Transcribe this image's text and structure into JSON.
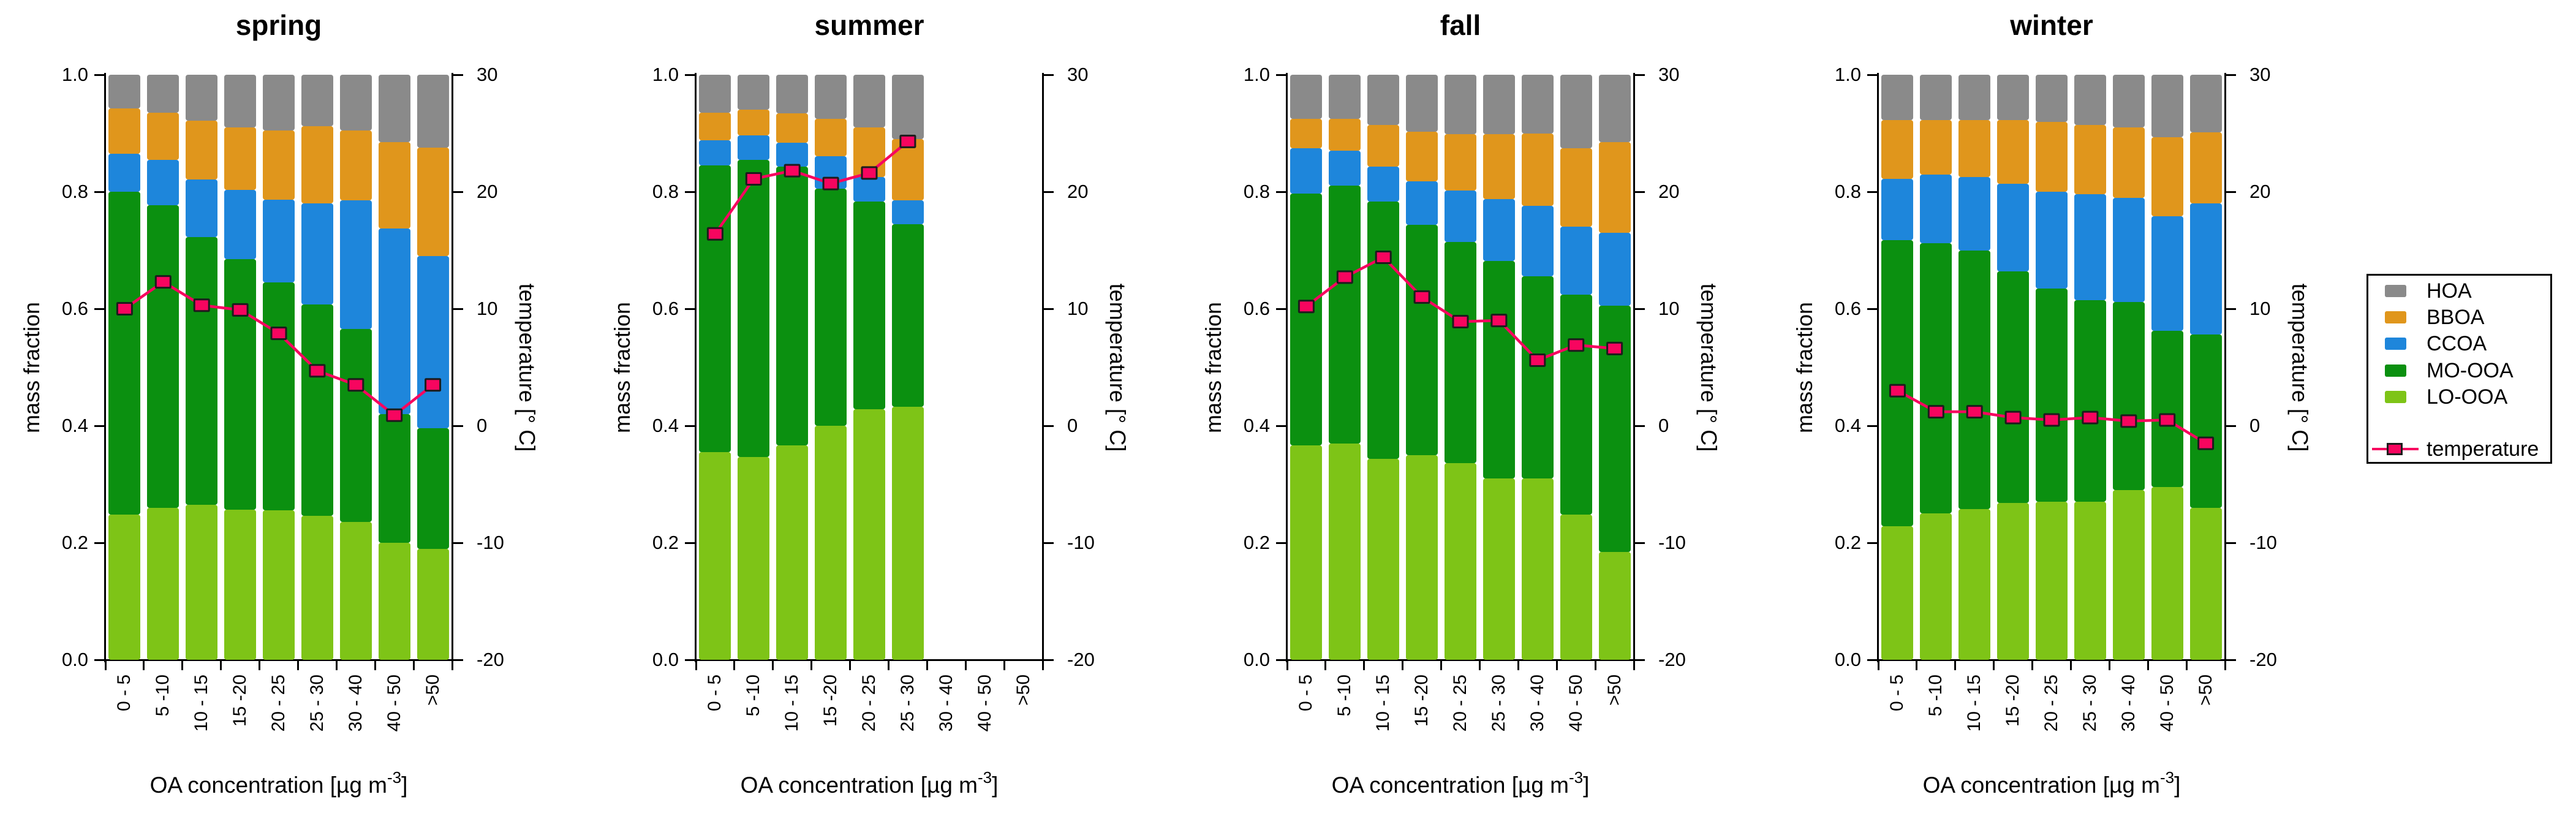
{
  "colors": {
    "HOA": "#8A8A8A",
    "BBOA": "#E0961C",
    "CCOA": "#1E86DB",
    "MO-OOA": "#0B9010",
    "LO-OOA": "#7EC417",
    "temperature": "#F7055F",
    "temperature_border": "#1C1C1C",
    "axis": "#000000"
  },
  "legend": {
    "items": [
      {
        "label": "HOA",
        "color_key": "HOA"
      },
      {
        "label": "BBOA",
        "color_key": "BBOA"
      },
      {
        "label": "CCOA",
        "color_key": "CCOA"
      },
      {
        "label": "MO-OOA",
        "color_key": "MO-OOA"
      },
      {
        "label": "LO-OOA",
        "color_key": "LO-OOA"
      }
    ],
    "temperature_label": "temperature"
  },
  "axes": {
    "y_left": {
      "label": "mass fraction",
      "ticks": [
        "1.0",
        "0.8",
        "0.6",
        "0.4",
        "0.2",
        "0.0"
      ]
    },
    "y_right": {
      "label": "temperature [° C]",
      "ticks": [
        "30",
        "20",
        "10",
        "0",
        "-10",
        "-20"
      ]
    },
    "x": {
      "label_pre": "OA concentration [µg m",
      "label_sup": "-3",
      "label_post": "]",
      "categories": [
        "0 - 5",
        "5 -10",
        "10 - 15",
        "15 -20",
        "20 - 25",
        "25 - 30",
        "30 - 40",
        "40 - 50",
        ">50"
      ]
    }
  },
  "chart_data": [
    {
      "type": "bar",
      "stacked": true,
      "title": "spring",
      "xlabel": "OA concentration [µg m-3]",
      "ylabel": "mass fraction",
      "y2label": "temperature [° C]",
      "ylim": [
        0,
        1
      ],
      "y2lim": [
        -20,
        30
      ],
      "grid": false,
      "legend_position": "right-outside",
      "categories": [
        "0 - 5",
        "5 -10",
        "10 - 15",
        "15 -20",
        "20 - 25",
        "25 - 30",
        "30 - 40",
        "40 - 50",
        ">50"
      ],
      "series": [
        {
          "name": "LO-OOA",
          "values": [
            0.248,
            0.26,
            0.265,
            0.257,
            0.255,
            0.246,
            0.236,
            0.2,
            0.19
          ]
        },
        {
          "name": "MO-OOA",
          "values": [
            0.552,
            0.517,
            0.458,
            0.428,
            0.39,
            0.361,
            0.329,
            0.22,
            0.206
          ]
        },
        {
          "name": "CCOA",
          "values": [
            0.065,
            0.077,
            0.098,
            0.118,
            0.141,
            0.173,
            0.22,
            0.317,
            0.294
          ]
        },
        {
          "name": "BBOA",
          "values": [
            0.077,
            0.081,
            0.1,
            0.107,
            0.119,
            0.132,
            0.12,
            0.148,
            0.185
          ]
        },
        {
          "name": "HOA",
          "values": [
            0.058,
            0.065,
            0.079,
            0.09,
            0.095,
            0.088,
            0.095,
            0.115,
            0.125
          ]
        }
      ],
      "temperature": {
        "name": "temperature",
        "axis": "right",
        "values": [
          10.0,
          12.3,
          10.3,
          9.9,
          7.9,
          4.7,
          3.5,
          0.9,
          3.5
        ]
      }
    },
    {
      "type": "bar",
      "stacked": true,
      "title": "summer",
      "xlabel": "OA concentration [µg m-3]",
      "ylabel": "mass fraction",
      "y2label": "temperature [° C]",
      "ylim": [
        0,
        1
      ],
      "y2lim": [
        -20,
        30
      ],
      "grid": false,
      "legend_position": "right-outside",
      "categories": [
        "0 - 5",
        "5 -10",
        "10 - 15",
        "15 -20",
        "20 - 25",
        "25 - 30",
        "30 - 40",
        "40 - 50",
        ">50"
      ],
      "series": [
        {
          "name": "LO-OOA",
          "values": [
            0.355,
            0.347,
            0.367,
            0.4,
            0.428,
            0.432,
            null,
            null,
            null
          ]
        },
        {
          "name": "MO-OOA",
          "values": [
            0.49,
            0.507,
            0.476,
            0.405,
            0.355,
            0.313,
            null,
            null,
            null
          ]
        },
        {
          "name": "CCOA",
          "values": [
            0.043,
            0.042,
            0.041,
            0.056,
            0.042,
            0.04,
            null,
            null,
            null
          ]
        },
        {
          "name": "BBOA",
          "values": [
            0.047,
            0.044,
            0.05,
            0.064,
            0.085,
            0.105,
            null,
            null,
            null
          ]
        },
        {
          "name": "HOA",
          "values": [
            0.065,
            0.06,
            0.066,
            0.075,
            0.09,
            0.11,
            null,
            null,
            null
          ]
        }
      ],
      "temperature": {
        "name": "temperature",
        "axis": "right",
        "values": [
          16.4,
          21.1,
          21.8,
          20.7,
          21.6,
          24.3,
          null,
          null,
          null
        ]
      }
    },
    {
      "type": "bar",
      "stacked": true,
      "title": "fall",
      "xlabel": "OA concentration [µg m-3]",
      "ylabel": "mass fraction",
      "y2label": "temperature [° C]",
      "ylim": [
        0,
        1
      ],
      "y2lim": [
        -20,
        30
      ],
      "grid": false,
      "legend_position": "right-outside",
      "categories": [
        "0 - 5",
        "5 -10",
        "10 - 15",
        "15 -20",
        "20 - 25",
        "25 - 30",
        "30 - 40",
        "40 - 50",
        ">50"
      ],
      "series": [
        {
          "name": "LO-OOA",
          "values": [
            0.367,
            0.37,
            0.343,
            0.35,
            0.336,
            0.31,
            0.31,
            0.248,
            0.184
          ]
        },
        {
          "name": "MO-OOA",
          "values": [
            0.43,
            0.44,
            0.44,
            0.393,
            0.378,
            0.372,
            0.345,
            0.376,
            0.421
          ]
        },
        {
          "name": "CCOA",
          "values": [
            0.077,
            0.06,
            0.06,
            0.075,
            0.088,
            0.105,
            0.121,
            0.116,
            0.125
          ]
        },
        {
          "name": "BBOA",
          "values": [
            0.051,
            0.055,
            0.071,
            0.085,
            0.096,
            0.111,
            0.124,
            0.134,
            0.155
          ]
        },
        {
          "name": "HOA",
          "values": [
            0.075,
            0.075,
            0.086,
            0.097,
            0.102,
            0.102,
            0.1,
            0.126,
            0.115
          ]
        }
      ],
      "temperature": {
        "name": "temperature",
        "axis": "right",
        "values": [
          10.2,
          12.7,
          14.4,
          11.0,
          8.9,
          9.0,
          5.6,
          6.9,
          6.6
        ]
      }
    },
    {
      "type": "bar",
      "stacked": true,
      "title": "winter",
      "xlabel": "OA concentration [µg m-3]",
      "ylabel": "mass fraction",
      "y2label": "temperature [° C]",
      "ylim": [
        0,
        1
      ],
      "y2lim": [
        -20,
        30
      ],
      "grid": false,
      "legend_position": "right-outside",
      "categories": [
        "0 - 5",
        "5 -10",
        "10 - 15",
        "15 -20",
        "20 - 25",
        "25 - 30",
        "30 - 40",
        "40 - 50",
        ">50"
      ],
      "series": [
        {
          "name": "LO-OOA",
          "values": [
            0.228,
            0.25,
            0.258,
            0.268,
            0.27,
            0.27,
            0.29,
            0.295,
            0.26
          ]
        },
        {
          "name": "MO-OOA",
          "values": [
            0.489,
            0.462,
            0.442,
            0.396,
            0.365,
            0.345,
            0.322,
            0.267,
            0.296
          ]
        },
        {
          "name": "CCOA",
          "values": [
            0.105,
            0.117,
            0.125,
            0.15,
            0.165,
            0.181,
            0.178,
            0.196,
            0.224
          ]
        },
        {
          "name": "BBOA",
          "values": [
            0.1,
            0.093,
            0.097,
            0.108,
            0.119,
            0.118,
            0.12,
            0.135,
            0.122
          ]
        },
        {
          "name": "HOA",
          "values": [
            0.078,
            0.078,
            0.078,
            0.078,
            0.081,
            0.086,
            0.09,
            0.107,
            0.098
          ]
        }
      ],
      "temperature": {
        "name": "temperature",
        "axis": "right",
        "values": [
          3.0,
          1.2,
          1.2,
          0.7,
          0.5,
          0.7,
          0.4,
          0.5,
          -1.5
        ]
      }
    }
  ]
}
